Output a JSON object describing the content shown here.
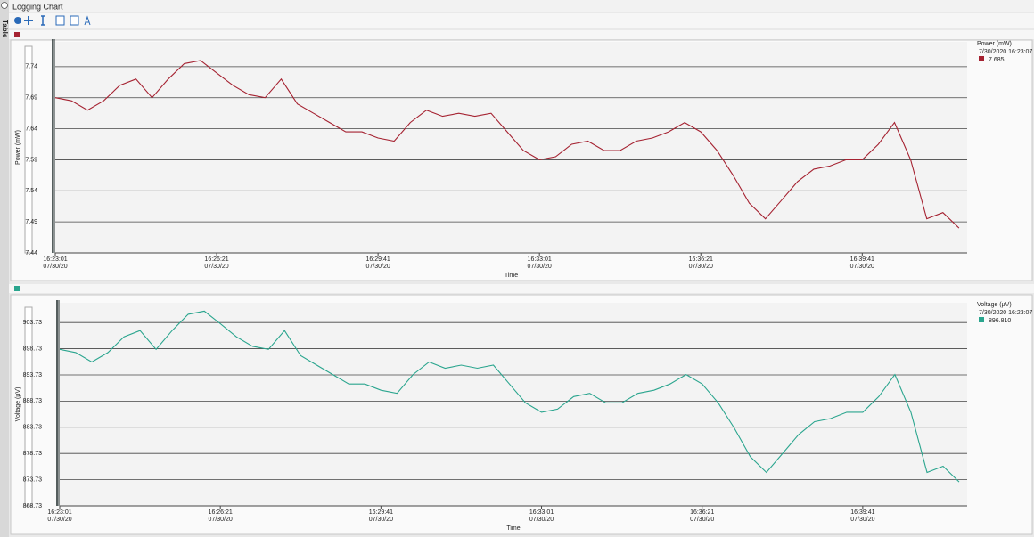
{
  "window": {
    "title": "Logging Chart",
    "side_tab": "Table"
  },
  "chart_data": [
    {
      "type": "line",
      "y_label": "Power (mW)",
      "x_label": "Time",
      "legend": {
        "title": "Power (mW)",
        "timestamp": "7/30/2020 16:23:07",
        "cursor_value": "7.685"
      },
      "xlim": [
        "16:23:01",
        "16:41:51"
      ],
      "ylim": [
        7.44,
        7.78
      ],
      "xticks": [
        {
          "value": "16:23:01",
          "label": "16:23:01\n07/30/20"
        },
        {
          "value": "16:26:21",
          "label": "16:26:21\n07/30/20"
        },
        {
          "value": "16:29:41",
          "label": "16:29:41\n07/30/20"
        },
        {
          "value": "16:33:01",
          "label": "16:33:01\n07/30/20"
        },
        {
          "value": "16:36:21",
          "label": "16:36:21\n07/30/20"
        },
        {
          "value": "16:39:41",
          "label": "16:39:41\n07/30/20"
        }
      ],
      "yticks": [
        7.44,
        7.49,
        7.54,
        7.59,
        7.64,
        7.69,
        7.74
      ],
      "grid": true,
      "x": [
        "16:23:01",
        "16:23:21",
        "16:23:41",
        "16:24:01",
        "16:24:21",
        "16:24:41",
        "16:25:01",
        "16:25:21",
        "16:25:41",
        "16:26:01",
        "16:26:21",
        "16:26:41",
        "16:27:01",
        "16:27:21",
        "16:27:41",
        "16:28:01",
        "16:28:21",
        "16:28:41",
        "16:29:01",
        "16:29:21",
        "16:29:41",
        "16:30:01",
        "16:30:21",
        "16:30:41",
        "16:31:01",
        "16:31:21",
        "16:31:41",
        "16:32:01",
        "16:32:21",
        "16:32:41",
        "16:33:01",
        "16:33:21",
        "16:33:41",
        "16:34:01",
        "16:34:21",
        "16:34:41",
        "16:35:01",
        "16:35:21",
        "16:35:41",
        "16:36:01",
        "16:36:21",
        "16:36:41",
        "16:37:01",
        "16:37:21",
        "16:37:41",
        "16:38:01",
        "16:38:21",
        "16:38:41",
        "16:39:01",
        "16:39:21",
        "16:39:41",
        "16:40:01",
        "16:40:21",
        "16:40:41",
        "16:41:01",
        "16:41:21",
        "16:41:41"
      ],
      "series": [
        {
          "name": "Power (mW)",
          "color": "#a52231",
          "values": [
            7.69,
            7.685,
            7.67,
            7.685,
            7.71,
            7.72,
            7.69,
            7.72,
            7.745,
            7.75,
            7.73,
            7.71,
            7.695,
            7.69,
            7.72,
            7.68,
            7.665,
            7.65,
            7.635,
            7.635,
            7.625,
            7.62,
            7.65,
            7.67,
            7.66,
            7.665,
            7.66,
            7.665,
            7.635,
            7.605,
            7.59,
            7.595,
            7.615,
            7.62,
            7.605,
            7.605,
            7.62,
            7.625,
            7.635,
            7.65,
            7.635,
            7.605,
            7.565,
            7.52,
            7.495,
            7.525,
            7.555,
            7.575,
            7.58,
            7.59,
            7.59,
            7.615,
            7.65,
            7.59,
            7.495,
            7.505,
            7.48
          ]
        }
      ]
    },
    {
      "type": "line",
      "y_label": "Voltage (µV)",
      "x_label": "Time",
      "legend": {
        "title": "Voltage (µV)",
        "timestamp": "7/30/2020 16:23:07",
        "cursor_value": "896.810"
      },
      "xlim": [
        "16:23:01",
        "16:41:51"
      ],
      "ylim": [
        868.73,
        907.5
      ],
      "xticks": [
        {
          "value": "16:23:01",
          "label": "16:23:01\n07/30/20"
        },
        {
          "value": "16:26:21",
          "label": "16:26:21\n07/30/20"
        },
        {
          "value": "16:29:41",
          "label": "16:29:41\n07/30/20"
        },
        {
          "value": "16:33:01",
          "label": "16:33:01\n07/30/20"
        },
        {
          "value": "16:36:21",
          "label": "16:36:21\n07/30/20"
        },
        {
          "value": "16:39:41",
          "label": "16:39:41\n07/30/20"
        }
      ],
      "yticks": [
        868.73,
        873.73,
        878.73,
        883.73,
        888.73,
        893.73,
        898.73,
        903.73
      ],
      "grid": true,
      "x": [
        "16:23:01",
        "16:23:21",
        "16:23:41",
        "16:24:01",
        "16:24:21",
        "16:24:41",
        "16:25:01",
        "16:25:21",
        "16:25:41",
        "16:26:01",
        "16:26:21",
        "16:26:41",
        "16:27:01",
        "16:27:21",
        "16:27:41",
        "16:28:01",
        "16:28:21",
        "16:28:41",
        "16:29:01",
        "16:29:21",
        "16:29:41",
        "16:30:01",
        "16:30:21",
        "16:30:41",
        "16:31:01",
        "16:31:21",
        "16:31:41",
        "16:32:01",
        "16:32:21",
        "16:32:41",
        "16:33:01",
        "16:33:21",
        "16:33:41",
        "16:34:01",
        "16:34:21",
        "16:34:41",
        "16:35:01",
        "16:35:21",
        "16:35:41",
        "16:36:01",
        "16:36:21",
        "16:36:41",
        "16:37:01",
        "16:37:21",
        "16:37:41",
        "16:38:01",
        "16:38:21",
        "16:38:41",
        "16:39:01",
        "16:39:21",
        "16:39:41",
        "16:40:01",
        "16:40:21",
        "16:40:41",
        "16:41:01",
        "16:41:21",
        "16:41:41"
      ],
      "series": [
        {
          "name": "Voltage (µV)",
          "color": "#2aa58e",
          "values": [
            898.6,
            898.0,
            896.2,
            898.0,
            901.0,
            902.2,
            898.6,
            902.2,
            905.3,
            905.9,
            903.5,
            901.0,
            899.2,
            898.6,
            902.2,
            897.4,
            895.6,
            893.8,
            892.0,
            892.0,
            890.8,
            890.2,
            893.8,
            896.2,
            895.0,
            895.6,
            895.0,
            895.6,
            892.0,
            888.4,
            886.6,
            887.2,
            889.6,
            890.2,
            888.4,
            888.4,
            890.2,
            890.8,
            892.0,
            893.8,
            892.0,
            888.4,
            883.6,
            878.1,
            875.1,
            878.7,
            882.3,
            884.8,
            885.4,
            886.6,
            886.6,
            889.6,
            893.8,
            886.6,
            875.1,
            876.3,
            873.3
          ]
        }
      ]
    }
  ]
}
